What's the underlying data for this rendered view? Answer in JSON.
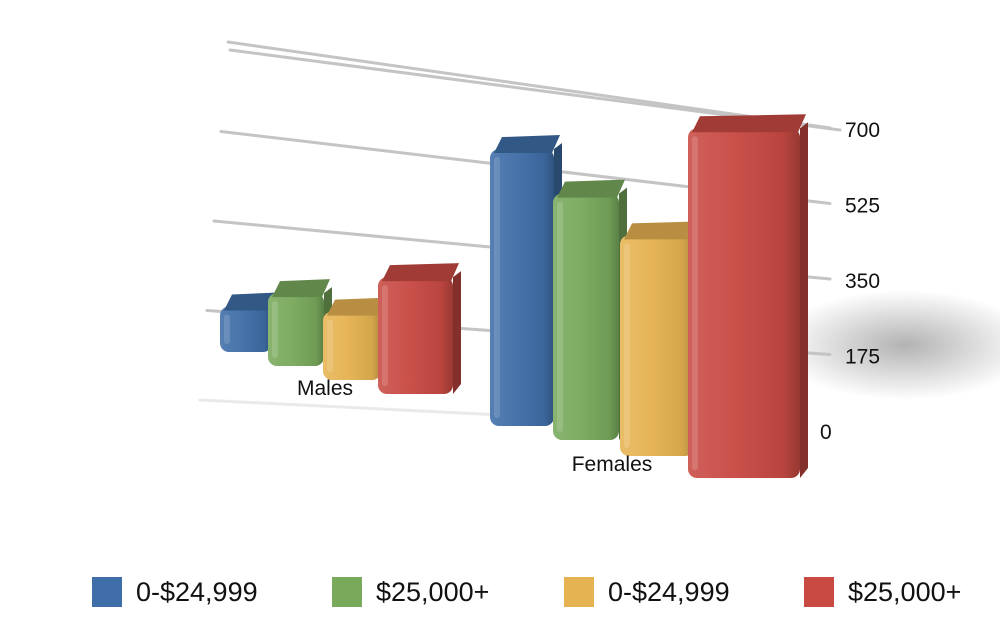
{
  "chart_data": {
    "type": "bar",
    "categories": [
      "Males",
      "Females"
    ],
    "series": [
      {
        "name": "0-$24,999",
        "color": "#3f6ea8",
        "values": [
          150,
          590
        ]
      },
      {
        "name": "$25,000+",
        "color": "#79aa5c",
        "values": [
          240,
          525
        ]
      },
      {
        "name": "0-$24,999",
        "color": "#e6b352",
        "values": [
          225,
          470
        ]
      },
      {
        "name": "$25,000+",
        "color": "#c94a43",
        "values": [
          385,
          745
        ]
      }
    ],
    "yticks": [
      "0",
      "175",
      "350",
      "525",
      "700"
    ],
    "ylim": [
      0,
      700
    ],
    "grid": true,
    "legend_position": "bottom",
    "style": "3d-bars"
  }
}
